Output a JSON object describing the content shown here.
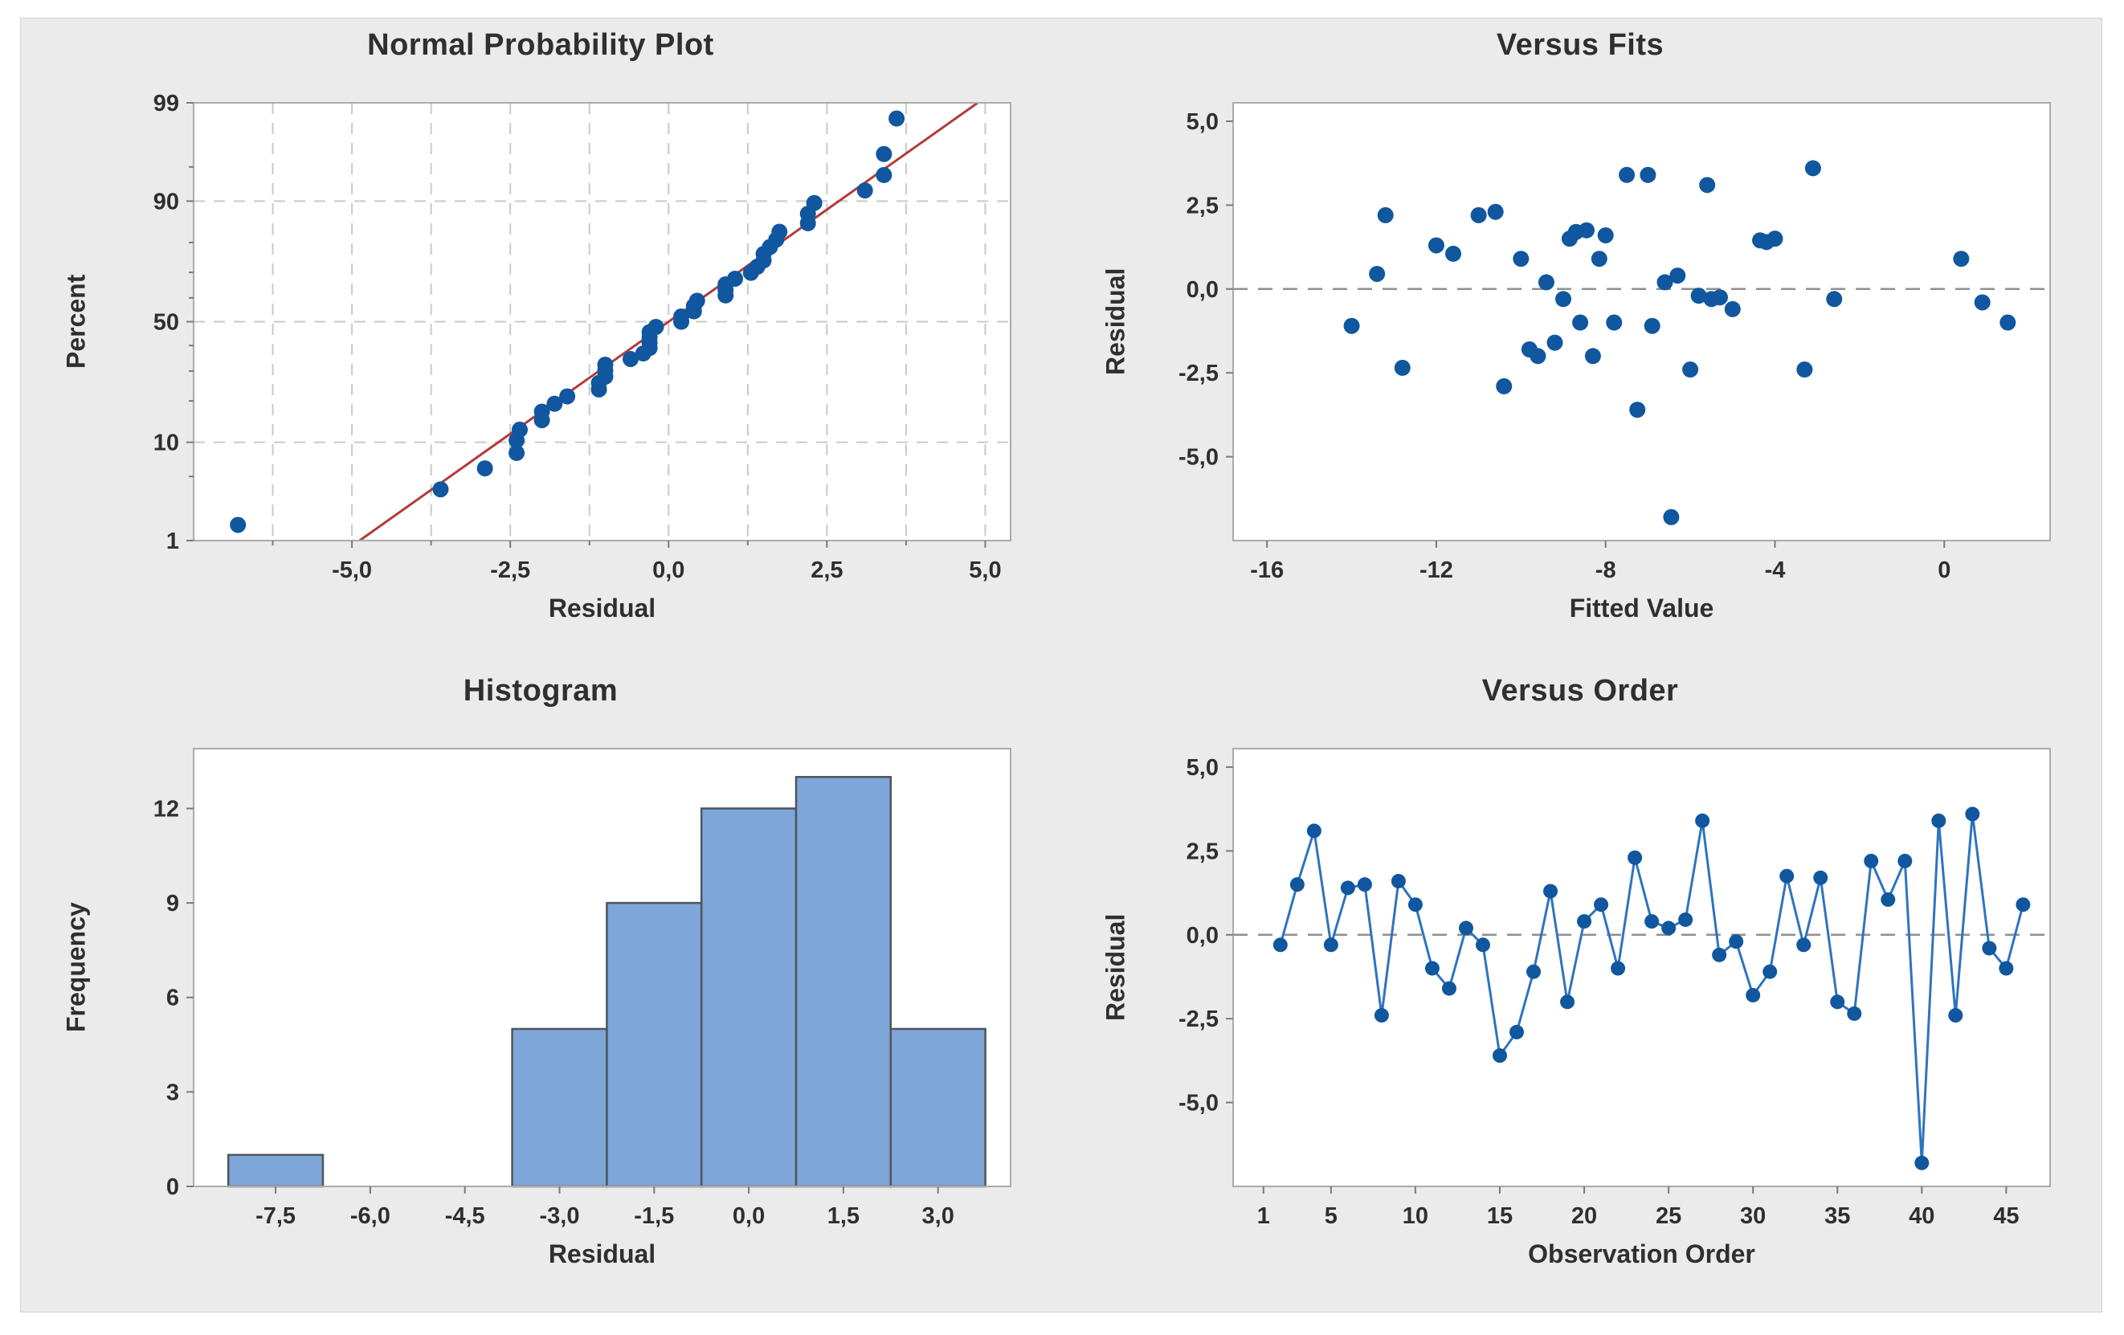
{
  "panel": {
    "background": "#ebebeb",
    "border_color": "#d2d2d2"
  },
  "style": {
    "plot_bg": "#ffffff",
    "plot_border": "#ababab",
    "text_color": "#2f2f2f",
    "marker_color": "#10579f",
    "order_line_color": "#2e74bf",
    "fit_line_color": "#b23b3b",
    "bar_fill": "#7ea6d8",
    "bar_stroke": "#4e555c",
    "grid_color": "#c9c9c9",
    "zero_line_color": "#8f8f8f",
    "tick_color": "#7a7a7a"
  },
  "chart_data": [
    {
      "type": "scatter",
      "id": "normal-probability-plot",
      "title": "Normal Probability Plot",
      "xlabel": "Residual",
      "ylabel": "Percent",
      "y_scale": "normal_percent",
      "xlim": [
        -7.5,
        5.4
      ],
      "percent_lim": [
        1,
        99
      ],
      "x_ticks": [
        {
          "v": -5,
          "label": "-5,0"
        },
        {
          "v": -2.5,
          "label": "-2,5"
        },
        {
          "v": 0,
          "label": "0,0"
        },
        {
          "v": 2.5,
          "label": "2,5"
        },
        {
          "v": 5,
          "label": "5,0"
        }
      ],
      "x_minor_ticks": [
        -6.25,
        -3.75,
        -1.25,
        1.25,
        3.75
      ],
      "y_ticks": [
        {
          "v": 1,
          "label": "1"
        },
        {
          "v": 10,
          "label": "10"
        },
        {
          "v": 50,
          "label": "50"
        },
        {
          "v": 90,
          "label": "90"
        },
        {
          "v": 99,
          "label": "99"
        }
      ],
      "y_minor_ticks": [
        5,
        20,
        30,
        40,
        60,
        70,
        80,
        95
      ],
      "grid_x": [
        -6.25,
        -5,
        -3.75,
        -2.5,
        -1.25,
        0,
        1.25,
        2.5,
        3.75,
        5
      ],
      "grid_y_percent": [
        10,
        50,
        90
      ],
      "fit_line": [
        [
          -4.88,
          1
        ],
        [
          4.88,
          99
        ]
      ],
      "points": [
        [
          -6.8,
          1.54
        ],
        [
          -3.6,
          3.74
        ],
        [
          -2.9,
          5.95
        ],
        [
          -2.4,
          8.15
        ],
        [
          -2.4,
          10.35
        ],
        [
          -2.35,
          12.56
        ],
        [
          -2.0,
          14.76
        ],
        [
          -2.0,
          16.96
        ],
        [
          -1.8,
          19.16
        ],
        [
          -1.6,
          21.37
        ],
        [
          -1.1,
          23.57
        ],
        [
          -1.1,
          25.77
        ],
        [
          -1.0,
          27.97
        ],
        [
          -1.0,
          30.18
        ],
        [
          -1.0,
          32.38
        ],
        [
          -0.6,
          34.58
        ],
        [
          -0.4,
          36.78
        ],
        [
          -0.3,
          38.99
        ],
        [
          -0.3,
          41.19
        ],
        [
          -0.3,
          43.39
        ],
        [
          -0.3,
          45.59
        ],
        [
          -0.2,
          47.8
        ],
        [
          0.2,
          50.0
        ],
        [
          0.2,
          52.2
        ],
        [
          0.4,
          54.41
        ],
        [
          0.4,
          56.61
        ],
        [
          0.45,
          58.81
        ],
        [
          0.9,
          61.01
        ],
        [
          0.9,
          63.22
        ],
        [
          0.9,
          65.42
        ],
        [
          1.05,
          67.62
        ],
        [
          1.3,
          69.82
        ],
        [
          1.4,
          72.03
        ],
        [
          1.5,
          74.23
        ],
        [
          1.5,
          76.43
        ],
        [
          1.6,
          78.63
        ],
        [
          1.7,
          80.84
        ],
        [
          1.75,
          83.04
        ],
        [
          2.2,
          85.24
        ],
        [
          2.2,
          87.44
        ],
        [
          2.3,
          89.65
        ],
        [
          3.1,
          91.85
        ],
        [
          3.4,
          94.05
        ],
        [
          3.4,
          96.26
        ],
        [
          3.6,
          98.46
        ]
      ]
    },
    {
      "type": "scatter",
      "id": "versus-fits",
      "title": "Versus Fits",
      "xlabel": "Fitted Value",
      "ylabel": "Residual",
      "xlim": [
        -16.8,
        2.5
      ],
      "ylim": [
        -7.5,
        5.55
      ],
      "x_ticks": [
        {
          "v": -16,
          "label": "-16"
        },
        {
          "v": -12,
          "label": "-12"
        },
        {
          "v": -8,
          "label": "-8"
        },
        {
          "v": -4,
          "label": "-4"
        },
        {
          "v": 0,
          "label": "0"
        }
      ],
      "y_ticks": [
        {
          "v": 5,
          "label": "5,0"
        },
        {
          "v": 2.5,
          "label": "2,5"
        },
        {
          "v": 0,
          "label": "0,0"
        },
        {
          "v": -2.5,
          "label": "-2,5"
        },
        {
          "v": -5,
          "label": "-5,0"
        }
      ],
      "zero_line": true,
      "points": [
        [
          -14.0,
          -1.1
        ],
        [
          -13.4,
          0.45
        ],
        [
          -13.2,
          2.2
        ],
        [
          -12.8,
          -2.35
        ],
        [
          -12.0,
          1.3
        ],
        [
          -11.6,
          1.05
        ],
        [
          -11.0,
          2.2
        ],
        [
          -10.6,
          2.3
        ],
        [
          -10.4,
          -2.9
        ],
        [
          -10.0,
          0.9
        ],
        [
          -9.8,
          -1.8
        ],
        [
          -9.6,
          -2.0
        ],
        [
          -9.4,
          0.2
        ],
        [
          -9.2,
          -1.6
        ],
        [
          -9.0,
          -0.3
        ],
        [
          -8.85,
          1.5
        ],
        [
          -8.7,
          1.7
        ],
        [
          -8.6,
          -1.0
        ],
        [
          -8.45,
          1.75
        ],
        [
          -8.3,
          -2.0
        ],
        [
          -8.15,
          0.9
        ],
        [
          -8.0,
          1.6
        ],
        [
          -7.8,
          -1.0
        ],
        [
          -7.5,
          3.4
        ],
        [
          -7.25,
          -3.6
        ],
        [
          -7.0,
          3.4
        ],
        [
          -6.9,
          -1.1
        ],
        [
          -6.6,
          0.2
        ],
        [
          -6.45,
          -6.8
        ],
        [
          -6.3,
          0.4
        ],
        [
          -6.0,
          -2.4
        ],
        [
          -5.8,
          -0.2
        ],
        [
          -5.6,
          3.1
        ],
        [
          -5.5,
          -0.3
        ],
        [
          -5.3,
          -0.25
        ],
        [
          -5.0,
          -0.6
        ],
        [
          -4.35,
          1.45
        ],
        [
          -4.2,
          1.4
        ],
        [
          -4.0,
          1.5
        ],
        [
          -3.3,
          -2.4
        ],
        [
          -3.1,
          3.6
        ],
        [
          -2.6,
          -0.3
        ],
        [
          0.4,
          0.9
        ],
        [
          0.9,
          -0.4
        ],
        [
          1.5,
          -1.0
        ]
      ]
    },
    {
      "type": "histogram",
      "id": "histogram",
      "title": "Histogram",
      "xlabel": "Residual",
      "ylabel": "Frequency",
      "xlim": [
        -8.8,
        4.15
      ],
      "ylim": [
        0,
        13.9
      ],
      "bin_width": 1.5,
      "bin_centers": [
        -7.5,
        -6.0,
        -4.5,
        -3.0,
        -1.5,
        0.0,
        1.5,
        3.0
      ],
      "frequencies": [
        1,
        0,
        0,
        5,
        9,
        12,
        13,
        5
      ],
      "x_ticks": [
        {
          "v": -7.5,
          "label": "-7,5"
        },
        {
          "v": -6,
          "label": "-6,0"
        },
        {
          "v": -4.5,
          "label": "-4,5"
        },
        {
          "v": -3,
          "label": "-3,0"
        },
        {
          "v": -1.5,
          "label": "-1,5"
        },
        {
          "v": 0,
          "label": "0,0"
        },
        {
          "v": 1.5,
          "label": "1,5"
        },
        {
          "v": 3,
          "label": "3,0"
        }
      ],
      "y_ticks": [
        {
          "v": 0,
          "label": "0"
        },
        {
          "v": 3,
          "label": "3"
        },
        {
          "v": 6,
          "label": "6"
        },
        {
          "v": 9,
          "label": "9"
        },
        {
          "v": 12,
          "label": "12"
        }
      ]
    },
    {
      "type": "line",
      "id": "versus-order",
      "title": "Versus Order",
      "xlabel": "Observation Order",
      "ylabel": "Residual",
      "xlim": [
        -0.8,
        47.6
      ],
      "ylim": [
        -7.5,
        5.55
      ],
      "x_ticks": [
        {
          "v": 1,
          "label": "1"
        },
        {
          "v": 5,
          "label": "5"
        },
        {
          "v": 10,
          "label": "10"
        },
        {
          "v": 15,
          "label": "15"
        },
        {
          "v": 20,
          "label": "20"
        },
        {
          "v": 25,
          "label": "25"
        },
        {
          "v": 30,
          "label": "30"
        },
        {
          "v": 35,
          "label": "35"
        },
        {
          "v": 40,
          "label": "40"
        },
        {
          "v": 45,
          "label": "45"
        }
      ],
      "y_ticks": [
        {
          "v": 5,
          "label": "5,0"
        },
        {
          "v": 2.5,
          "label": "2,5"
        },
        {
          "v": 0,
          "label": "0,0"
        },
        {
          "v": -2.5,
          "label": "-2,5"
        },
        {
          "v": -5,
          "label": "-5,0"
        }
      ],
      "zero_line": true,
      "points": [
        [
          2,
          -0.3
        ],
        [
          3,
          1.5
        ],
        [
          4,
          3.1
        ],
        [
          5,
          -0.3
        ],
        [
          6,
          1.4
        ],
        [
          7,
          1.5
        ],
        [
          8,
          -2.4
        ],
        [
          9,
          1.6
        ],
        [
          10,
          0.9
        ],
        [
          11,
          -1.0
        ],
        [
          12,
          -1.6
        ],
        [
          13,
          0.2
        ],
        [
          14,
          -0.3
        ],
        [
          15,
          -3.6
        ],
        [
          16,
          -2.9
        ],
        [
          17,
          -1.1
        ],
        [
          18,
          1.3
        ],
        [
          19,
          -2.0
        ],
        [
          20,
          0.4
        ],
        [
          21,
          0.9
        ],
        [
          22,
          -1.0
        ],
        [
          23,
          2.3
        ],
        [
          24,
          0.4
        ],
        [
          25,
          0.2
        ],
        [
          26,
          0.45
        ],
        [
          27,
          3.4
        ],
        [
          28,
          -0.6
        ],
        [
          29,
          -0.2
        ],
        [
          30,
          -1.8
        ],
        [
          31,
          -1.1
        ],
        [
          32,
          1.75
        ],
        [
          33,
          -0.3
        ],
        [
          34,
          1.7
        ],
        [
          35,
          -2.0
        ],
        [
          36,
          -2.35
        ],
        [
          37,
          2.2
        ],
        [
          38,
          1.05
        ],
        [
          39,
          2.2
        ],
        [
          40,
          -6.8
        ],
        [
          41,
          3.4
        ],
        [
          42,
          -2.4
        ],
        [
          43,
          3.6
        ],
        [
          44,
          -0.4
        ],
        [
          45,
          -1.0
        ],
        [
          46,
          0.9
        ]
      ]
    }
  ]
}
